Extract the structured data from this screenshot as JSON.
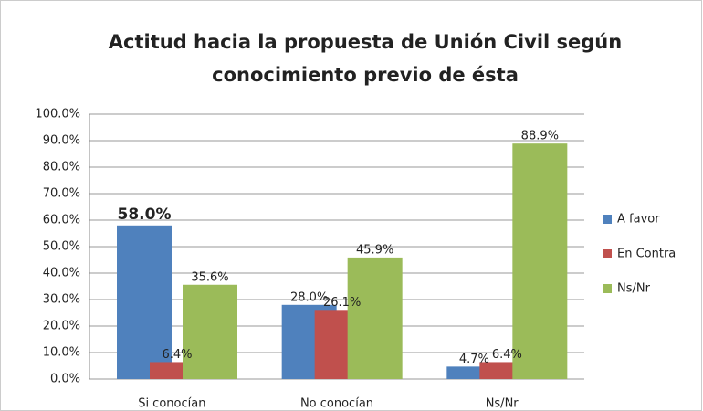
{
  "chart_data": {
    "type": "bar",
    "title": "Actitud hacia la propuesta de Unión Civil según",
    "subtitle": "conocimiento previo de ésta",
    "categories": [
      "Si conocían",
      "No conocían",
      "Ns/Nr"
    ],
    "series": [
      {
        "name": "A favor",
        "color": "#4f81bd",
        "values": [
          58.0,
          28.0,
          4.7
        ],
        "value_labels": [
          "58.0%",
          "28.0%",
          "4.7%"
        ]
      },
      {
        "name": "En Contra",
        "color": "#c0504d",
        "values": [
          6.4,
          26.1,
          6.4
        ],
        "value_labels": [
          "6.4%",
          "26.1%",
          "6.4%"
        ]
      },
      {
        "name": "Ns/Nr",
        "color": "#9bbb59",
        "values": [
          35.6,
          45.9,
          88.9
        ],
        "value_labels": [
          "35.6%",
          "45.9%",
          "88.9%"
        ]
      }
    ],
    "ylim": [
      0,
      100
    ],
    "yticks": [
      {
        "value": 0,
        "label": "0.0%"
      },
      {
        "value": 10,
        "label": "10.0%"
      },
      {
        "value": 20,
        "label": "20.0%"
      },
      {
        "value": 30,
        "label": "30.0%"
      },
      {
        "value": 40,
        "label": "40.0%"
      },
      {
        "value": 50,
        "label": "50.0%"
      },
      {
        "value": 60,
        "label": "60.0%"
      },
      {
        "value": 70,
        "label": "70.0%"
      },
      {
        "value": 80,
        "label": "80.0%"
      },
      {
        "value": 90,
        "label": "90.0%"
      },
      {
        "value": 100,
        "label": "100.0%"
      }
    ],
    "grid": true,
    "legend": "right"
  }
}
